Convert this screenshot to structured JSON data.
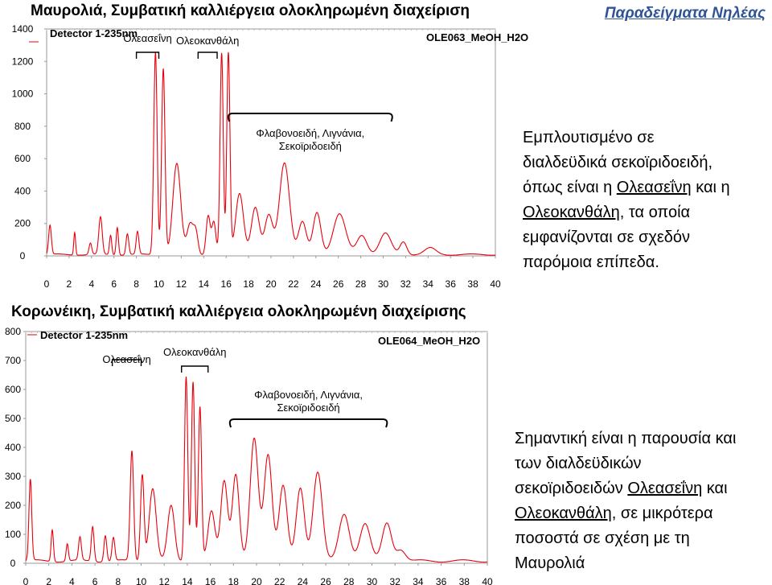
{
  "header": {
    "corner_label": "Παραδείγματα Νηλέας"
  },
  "chart_data": [
    {
      "type": "line",
      "title": "Μαυρολιά, Συμβατική καλλιέργεια ολοκληρωμένη διαχείριση",
      "detector_label": "Detector 1-235nm",
      "sample_label": "OLE063_MeOH_H2O",
      "x_ticks": [
        "0",
        "2",
        "4",
        "6",
        "8",
        "10",
        "12",
        "14",
        "16",
        "18",
        "20",
        "22",
        "24",
        "26",
        "28",
        "30",
        "32",
        "34",
        "36",
        "38",
        "40"
      ],
      "y_ticks": [
        "0",
        "200",
        "400",
        "600",
        "800",
        "1000",
        "1200",
        "1400"
      ],
      "xlim": [
        0,
        40
      ],
      "ylim": [
        0,
        1400
      ],
      "annotations": [
        {
          "label": "Ολεασεΐνη",
          "x_range": [
            8,
            10
          ]
        },
        {
          "label": "Ολεοκανθάλη",
          "x_range": [
            13.5,
            15.2
          ]
        },
        {
          "label": "Φλαβονοειδή, Λιγνάνια,",
          "label2": "Σεκοϊριδοειδή",
          "x_range": [
            16,
            31
          ]
        }
      ],
      "series": [
        {
          "color": "#e8000b",
          "peaks": [
            [
              0.3,
              180,
              0.12
            ],
            [
              2.5,
              140,
              0.08
            ],
            [
              3.9,
              70,
              0.12
            ],
            [
              4.8,
              230,
              0.15
            ],
            [
              5.7,
              120,
              0.1
            ],
            [
              6.3,
              170,
              0.1
            ],
            [
              7.2,
              130,
              0.12
            ],
            [
              8.1,
              140,
              0.12
            ],
            [
              9.7,
              1250,
              0.15
            ],
            [
              10.4,
              1150,
              0.15
            ],
            [
              11.6,
              560,
              0.35
            ],
            [
              12.8,
              190,
              0.28
            ],
            [
              13.3,
              130,
              0.2
            ],
            [
              14.4,
              240,
              0.18
            ],
            [
              14.9,
              200,
              0.18
            ],
            [
              15.6,
              1240,
              0.14
            ],
            [
              16.2,
              1240,
              0.14
            ],
            [
              17.2,
              380,
              0.35
            ],
            [
              18.6,
              290,
              0.35
            ],
            [
              19.8,
              240,
              0.35
            ],
            [
              21.2,
              570,
              0.45
            ],
            [
              22.8,
              200,
              0.35
            ],
            [
              24.1,
              260,
              0.35
            ],
            [
              26.1,
              250,
              0.55
            ],
            [
              28.1,
              120,
              0.45
            ],
            [
              30.2,
              130,
              0.5
            ],
            [
              31.8,
              80,
              0.3
            ],
            [
              34.2,
              40,
              0.5
            ]
          ]
        }
      ],
      "description_text": [
        {
          "text": "Εμπλουτισμένο σε"
        },
        {
          "text": "διαλδεϋδικά σεκοϊριδοειδή,"
        },
        {
          "text": "όπως είναι η ",
          "u": "Ολεασεΐνη",
          "rest": " και η"
        },
        {
          "u": "Ολεοκανθάλη",
          "rest": ", τα οποία"
        },
        {
          "text": "εμφανίζονται σε σχεδόν"
        },
        {
          "text": "παρόμοια επίπεδα."
        }
      ]
    },
    {
      "type": "line",
      "title": "Κορωνέικη, Συμβατική καλλιέργεια ολοκληρωμένη διαχείρισης",
      "detector_label": "Detector 1-235nm",
      "sample_label": "OLE064_MeOH_H2O",
      "x_ticks": [
        "0",
        "2",
        "4",
        "6",
        "8",
        "10",
        "12",
        "14",
        "16",
        "18",
        "20",
        "22",
        "24",
        "26",
        "28",
        "30",
        "32",
        "34",
        "36",
        "38",
        "40"
      ],
      "y_ticks": [
        "0",
        "100",
        "200",
        "300",
        "400",
        "500",
        "600",
        "700",
        "800"
      ],
      "xlim": [
        0,
        40
      ],
      "ylim": [
        0,
        800
      ],
      "annotations": [
        {
          "label": "Ολεασεΐνη",
          "x_range": [
            7.5,
            10
          ]
        },
        {
          "label": "Ολεοκανθάλη",
          "x_range": [
            13.5,
            15.8
          ]
        },
        {
          "label": "Φλαβονοειδή, Λιγνάνια,",
          "label2": "Σεκοϊριδοειδή",
          "x_range": [
            17.5,
            31.5
          ]
        }
      ],
      "series": [
        {
          "color": "#e8000b",
          "peaks": [
            [
              0.4,
              280,
              0.12
            ],
            [
              2.3,
              110,
              0.1
            ],
            [
              3.6,
              60,
              0.1
            ],
            [
              4.7,
              80,
              0.12
            ],
            [
              5.8,
              120,
              0.12
            ],
            [
              6.9,
              90,
              0.12
            ],
            [
              7.6,
              80,
              0.12
            ],
            [
              9.2,
              380,
              0.15
            ],
            [
              10.1,
              300,
              0.15
            ],
            [
              11.0,
              250,
              0.3
            ],
            [
              12.6,
              190,
              0.3
            ],
            [
              13.9,
              640,
              0.14
            ],
            [
              14.5,
              620,
              0.14
            ],
            [
              15.1,
              530,
              0.14
            ],
            [
              16.1,
              170,
              0.3
            ],
            [
              17.2,
              280,
              0.3
            ],
            [
              18.2,
              300,
              0.3
            ],
            [
              19.8,
              420,
              0.35
            ],
            [
              21.0,
              370,
              0.35
            ],
            [
              22.3,
              260,
              0.35
            ],
            [
              23.8,
              250,
              0.35
            ],
            [
              25.3,
              310,
              0.4
            ],
            [
              27.6,
              160,
              0.45
            ],
            [
              29.4,
              130,
              0.45
            ],
            [
              31.3,
              130,
              0.4
            ],
            [
              32.5,
              40,
              0.4
            ]
          ]
        }
      ],
      "description_text": [
        {
          "text": "Σημαντική είναι η παρουσία και"
        },
        {
          "text": "των διαλδεϋδικών"
        },
        {
          "text": "σεκοϊριδοειδών ",
          "u": "Ολεασεΐνη",
          "rest": " και"
        },
        {
          "u": "Ολεοκανθάλη",
          "rest": ", σε μικρότερα"
        },
        {
          "text": "ποσοστά σε σχέση με τη"
        },
        {
          "text": "Μαυρολιά"
        }
      ]
    }
  ]
}
